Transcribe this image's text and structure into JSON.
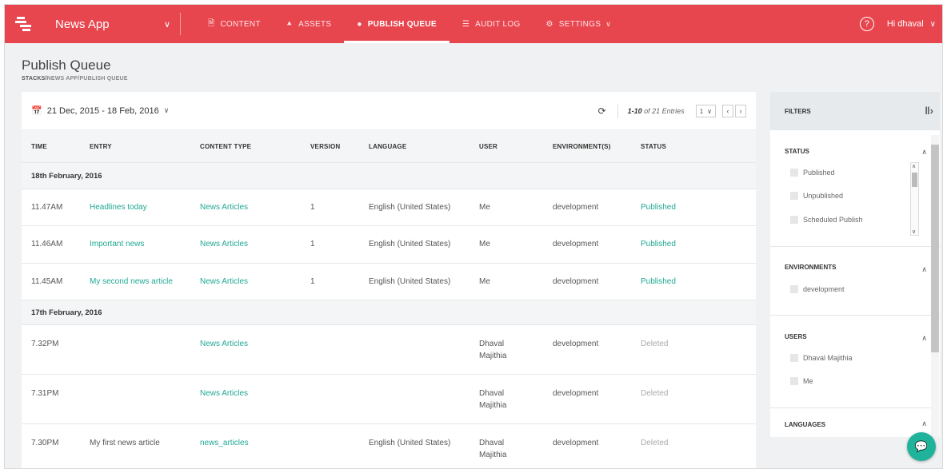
{
  "header": {
    "app_name": "News App",
    "greeting": "Hi dhaval",
    "nav": [
      {
        "label": "CONTENT",
        "icon": "document-icon"
      },
      {
        "label": "ASSETS",
        "icon": "upload-icon"
      },
      {
        "label": "PUBLISH QUEUE",
        "icon": "publish-icon",
        "active": true
      },
      {
        "label": "AUDIT LOG",
        "icon": "list-icon"
      },
      {
        "label": "SETTINGS",
        "icon": "gear-icon"
      }
    ],
    "help_icon": "?"
  },
  "page": {
    "title": "Publish Queue",
    "breadcrumb": {
      "root": "STACKS",
      "sep": " / ",
      "app": "NEWS APP",
      "current": "PUBLISH QUEUE"
    }
  },
  "toolbar": {
    "date_range": "21 Dec, 2015 - 18 Feb, 2016",
    "entries_range": "1-10",
    "entries_total": " of 21 Entries",
    "page_select": "1"
  },
  "table": {
    "columns": [
      "TIME",
      "ENTRY",
      "CONTENT TYPE",
      "VERSION",
      "LANGUAGE",
      "USER",
      "ENVIRONMENT(S)",
      "STATUS"
    ],
    "groups": [
      {
        "label": "18th February, 2016",
        "rows": [
          {
            "time": "11.47AM",
            "entry": "Headlines today",
            "content_type": "News Articles",
            "version": "1",
            "language": "English (United States)",
            "user": "Me",
            "user2": "",
            "environment": "development",
            "status": "Published"
          },
          {
            "time": "11.46AM",
            "entry": "Important news",
            "content_type": "News Articles",
            "version": "1",
            "language": "English (United States)",
            "user": "Me",
            "user2": "",
            "environment": "development",
            "status": "Published"
          },
          {
            "time": "11.45AM",
            "entry": "My second news article",
            "content_type": "News Articles",
            "version": "1",
            "language": "English (United States)",
            "user": "Me",
            "user2": "",
            "environment": "development",
            "status": "Published"
          }
        ]
      },
      {
        "label": "17th February, 2016",
        "rows": [
          {
            "time": "7.32PM",
            "entry": "",
            "content_type": "News Articles",
            "version": "",
            "language": "",
            "user": "Dhaval",
            "user2": "Majithia",
            "environment": "development",
            "status": "Deleted"
          },
          {
            "time": "7.31PM",
            "entry": "",
            "content_type": "News Articles",
            "version": "",
            "language": "",
            "user": "Dhaval",
            "user2": "Majithia",
            "environment": "development",
            "status": "Deleted"
          },
          {
            "time": "7.30PM",
            "entry": "My first news article",
            "content_type": "news_articles",
            "version": "",
            "language": "English (United States)",
            "user": "Dhaval",
            "user2": "Majithia",
            "environment": "development",
            "status": "Deleted"
          }
        ]
      }
    ]
  },
  "filters": {
    "title": "FILTERS",
    "sections": [
      {
        "title": "STATUS",
        "options": [
          "Published",
          "Unpublished",
          "Scheduled Publish"
        ]
      },
      {
        "title": "ENVIRONMENTS",
        "options": [
          "development"
        ]
      },
      {
        "title": "USERS",
        "options": [
          "Dhaval Majithia",
          "Me"
        ]
      },
      {
        "title": "LANGUAGES",
        "options": []
      }
    ]
  },
  "colors": {
    "brand": "#e8464f",
    "link": "#20a894",
    "chat": "#20b39b"
  }
}
